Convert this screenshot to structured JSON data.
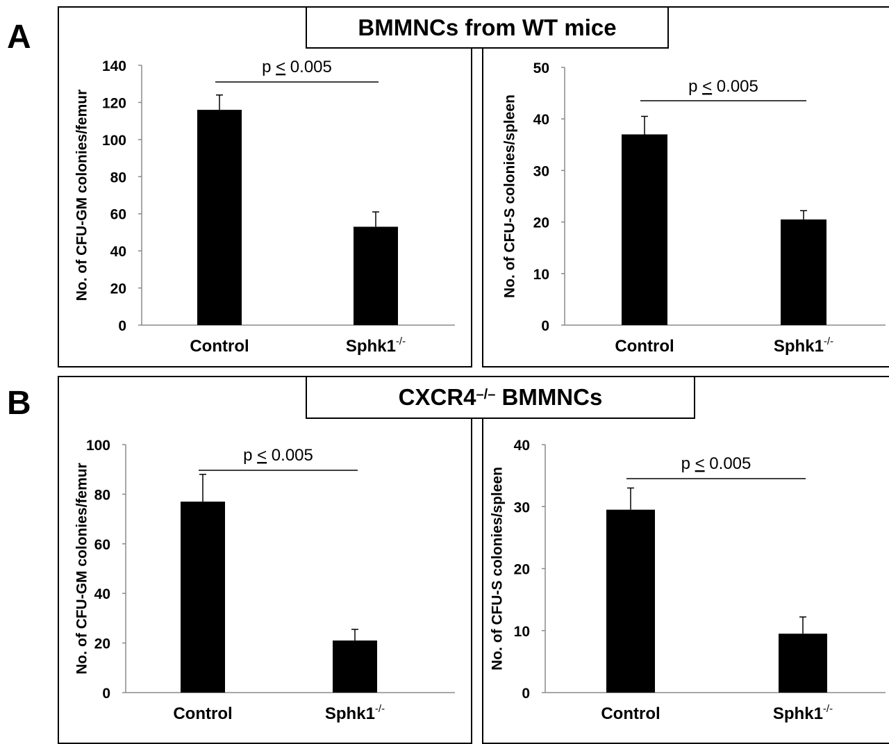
{
  "panels": [
    {
      "label": "A",
      "title_main": "BMMNCs from WT mice",
      "title_sup": ""
    },
    {
      "label": "B",
      "title_main": "CXCR4",
      "title_sup": "–/–",
      "title_tail": " BMMNCs"
    }
  ],
  "chart_data": [
    {
      "type": "bar",
      "panel": "A",
      "categories": [
        "Control",
        "Sphk1"
      ],
      "category_superscripts": [
        "",
        "-/-"
      ],
      "values": [
        116,
        53
      ],
      "error_upper": [
        8,
        8
      ],
      "ylabel": "No. of CFU-GM colonies/femur",
      "ylim": [
        0,
        140
      ],
      "yticks": [
        0,
        20,
        40,
        60,
        80,
        100,
        120,
        140
      ],
      "annotation": {
        "text_pre": "p ",
        "text_sym": "<",
        "text_post": " 0.005",
        "between": [
          "Control",
          "Sphk1"
        ]
      },
      "bar_color": "#000000",
      "grid": false
    },
    {
      "type": "bar",
      "panel": "A",
      "categories": [
        "Control",
        "Sphk1"
      ],
      "category_superscripts": [
        "",
        "-/-"
      ],
      "values": [
        37,
        20.5
      ],
      "error_upper": [
        3.5,
        1.7
      ],
      "ylabel": "No. of CFU-S colonies/spleen",
      "ylim": [
        0,
        50
      ],
      "yticks": [
        0,
        10,
        20,
        30,
        40,
        50
      ],
      "annotation": {
        "text_pre": "p ",
        "text_sym": "<",
        "text_post": " 0.005",
        "between": [
          "Control",
          "Sphk1"
        ]
      },
      "bar_color": "#000000",
      "grid": false
    },
    {
      "type": "bar",
      "panel": "B",
      "categories": [
        "Control",
        "Sphk1"
      ],
      "category_superscripts": [
        "",
        "-/-"
      ],
      "values": [
        77,
        21
      ],
      "error_upper": [
        11,
        4.5
      ],
      "ylabel": "No. of CFU-GM colonies/femur",
      "ylim": [
        0,
        100
      ],
      "yticks": [
        0,
        20,
        40,
        60,
        80,
        100
      ],
      "annotation": {
        "text_pre": "p ",
        "text_sym": "<",
        "text_post": " 0.005",
        "between": [
          "Control",
          "Sphk1"
        ]
      },
      "bar_color": "#000000",
      "grid": false
    },
    {
      "type": "bar",
      "panel": "B",
      "categories": [
        "Control",
        "Sphk1"
      ],
      "category_superscripts": [
        "",
        "-/-"
      ],
      "values": [
        29.5,
        9.5
      ],
      "error_upper": [
        3.5,
        2.7
      ],
      "ylabel": "No. of CFU-S colonies/spleen",
      "ylim": [
        0,
        40
      ],
      "yticks": [
        0,
        10,
        20,
        30,
        40
      ],
      "annotation": {
        "text_pre": "p ",
        "text_sym": "<",
        "text_post": " 0.005",
        "between": [
          "Control",
          "Sphk1"
        ]
      },
      "bar_color": "#000000",
      "grid": false
    }
  ]
}
